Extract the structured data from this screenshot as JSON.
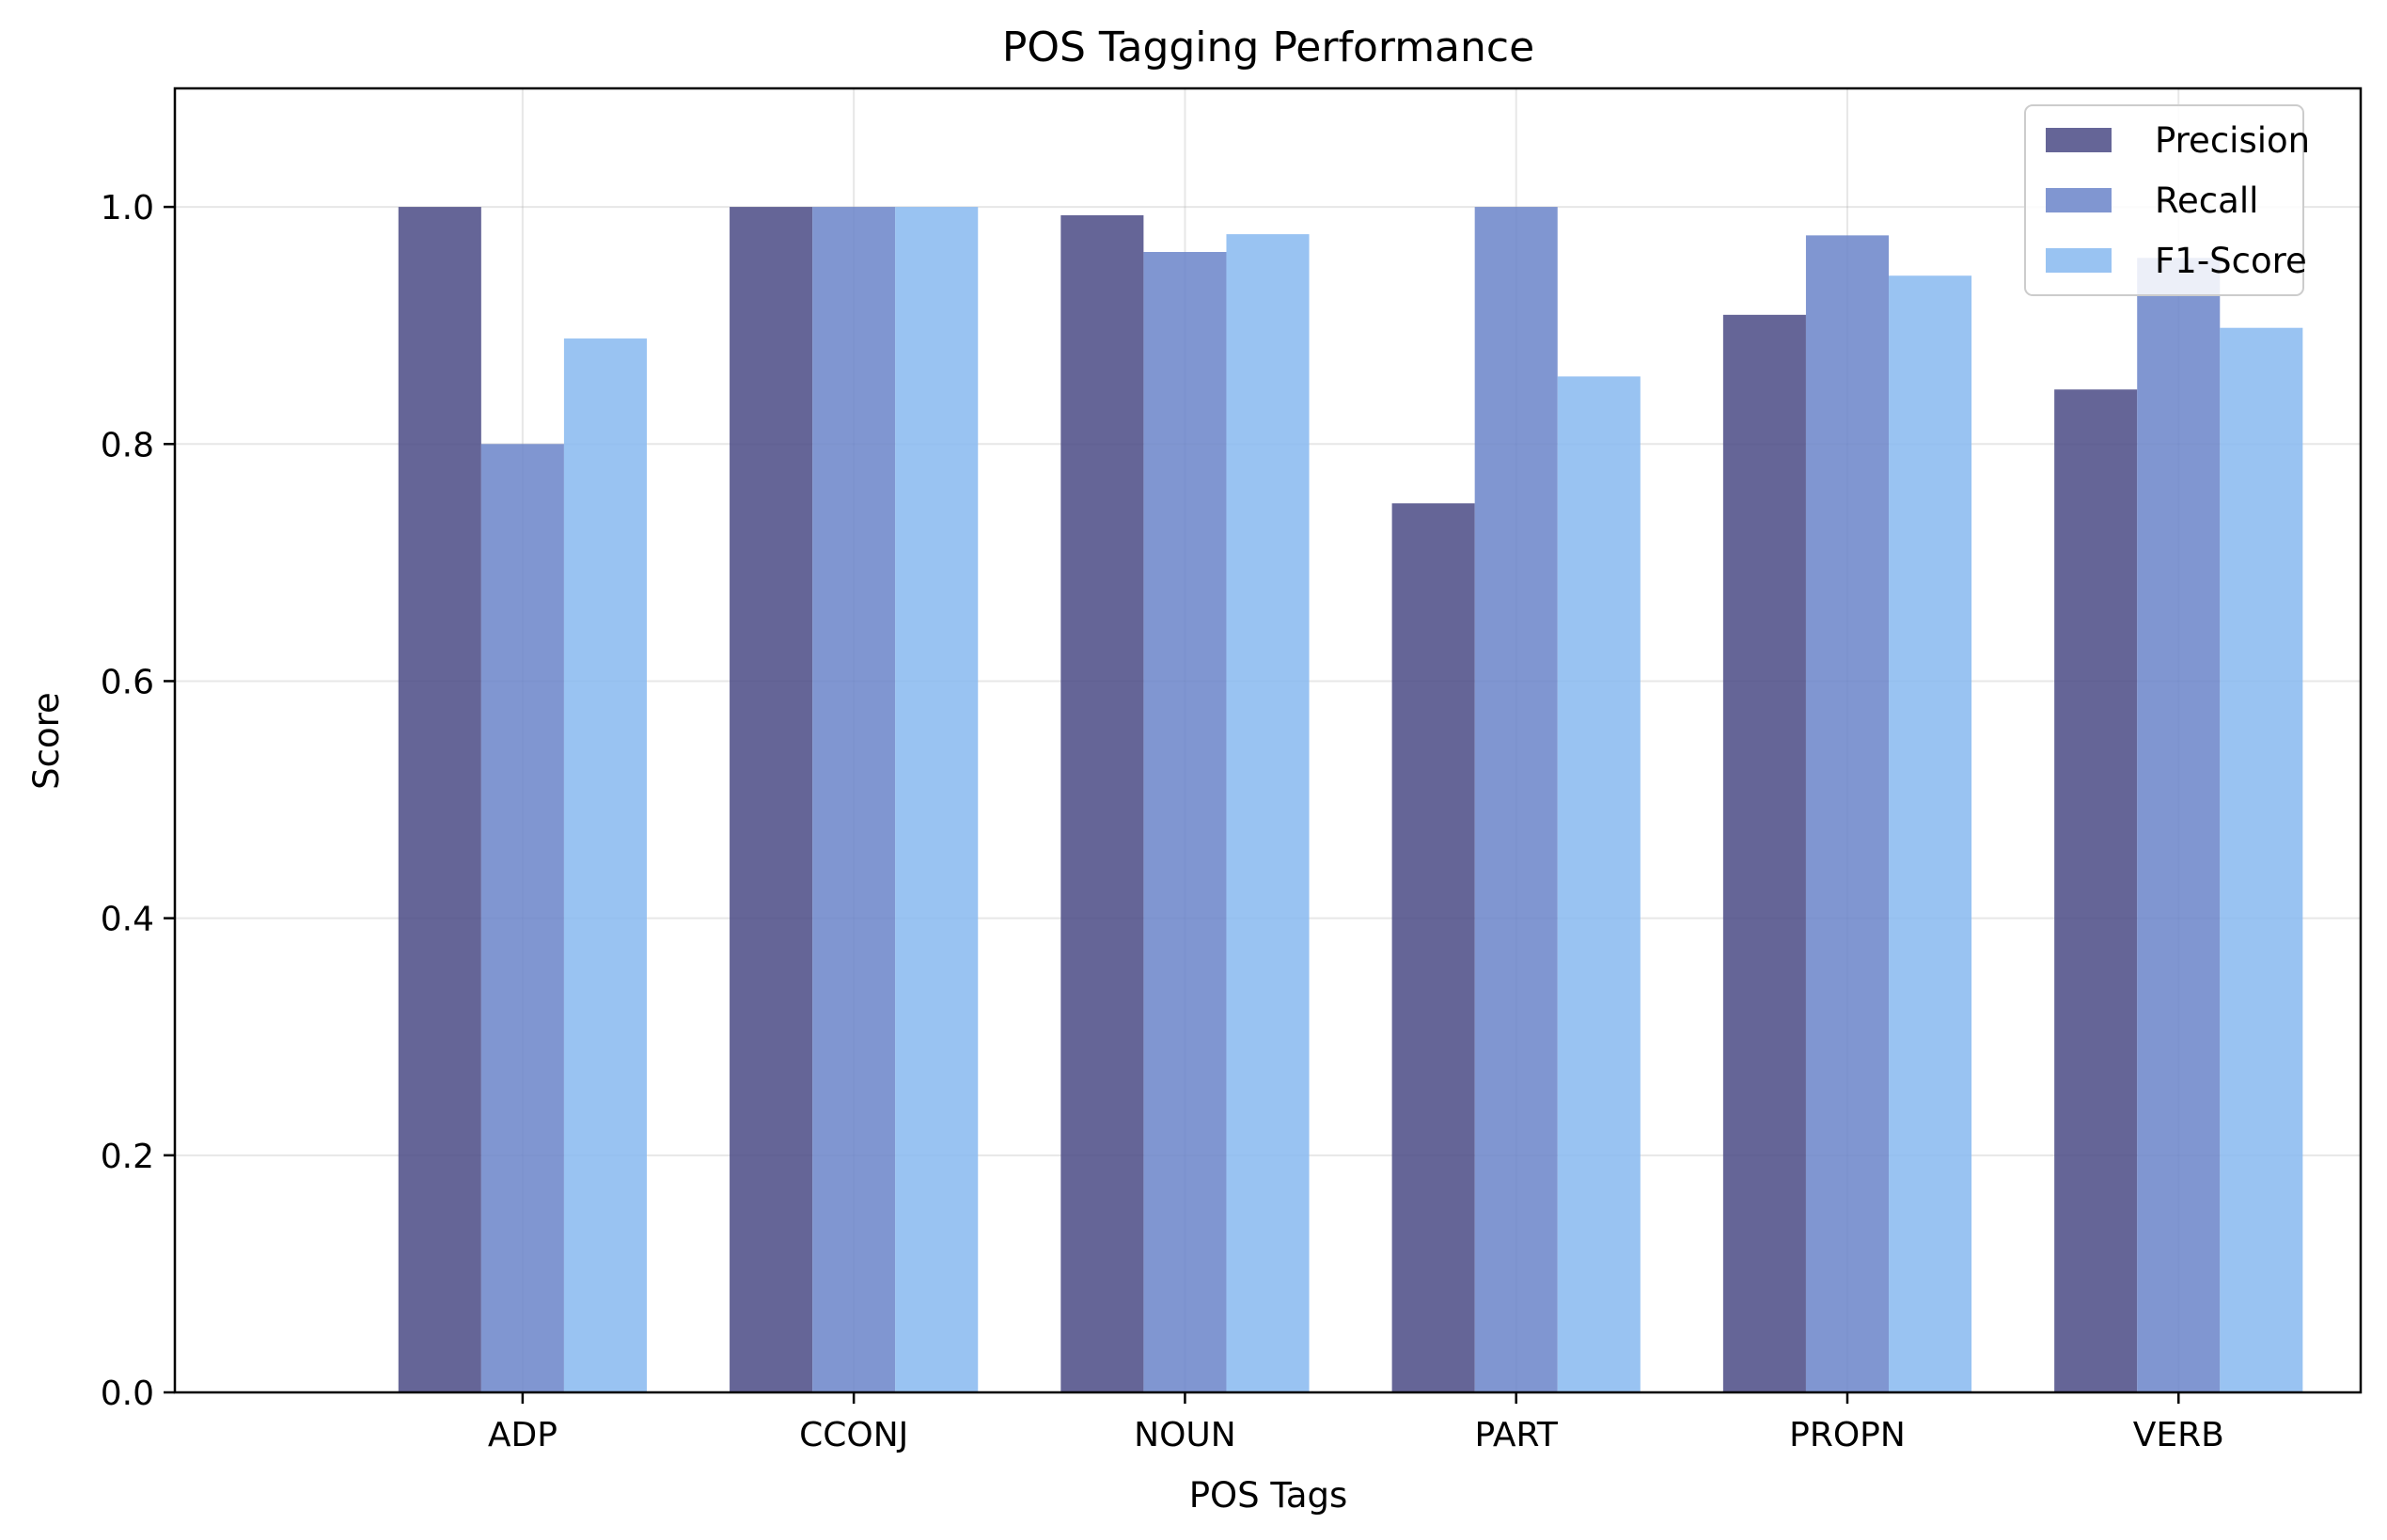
{
  "chart_data": {
    "type": "bar",
    "title": "POS Tagging Performance",
    "xlabel": "POS Tags",
    "ylabel": "Score",
    "categories": [
      "ADP",
      "CCONJ",
      "NOUN",
      "PART",
      "PROPN",
      "VERB"
    ],
    "series": [
      {
        "name": "Precision",
        "values": [
          1.0,
          1.0,
          0.993,
          0.75,
          0.909,
          0.846
        ]
      },
      {
        "name": "Recall",
        "values": [
          0.8,
          1.0,
          0.962,
          1.0,
          0.976,
          0.957
        ]
      },
      {
        "name": "F1-Score",
        "values": [
          0.889,
          1.0,
          0.977,
          0.857,
          0.942,
          0.898
        ]
      }
    ],
    "ylim": [
      0,
      1.1
    ],
    "yticks": [
      "0.0",
      "0.2",
      "0.4",
      "0.6",
      "0.8",
      "1.0"
    ],
    "grid": true,
    "legend_position": "top-right",
    "colors": {
      "Precision": "#4a4a85",
      "Recall": "#6a84c9",
      "F1-Score": "#87b8f0"
    }
  }
}
